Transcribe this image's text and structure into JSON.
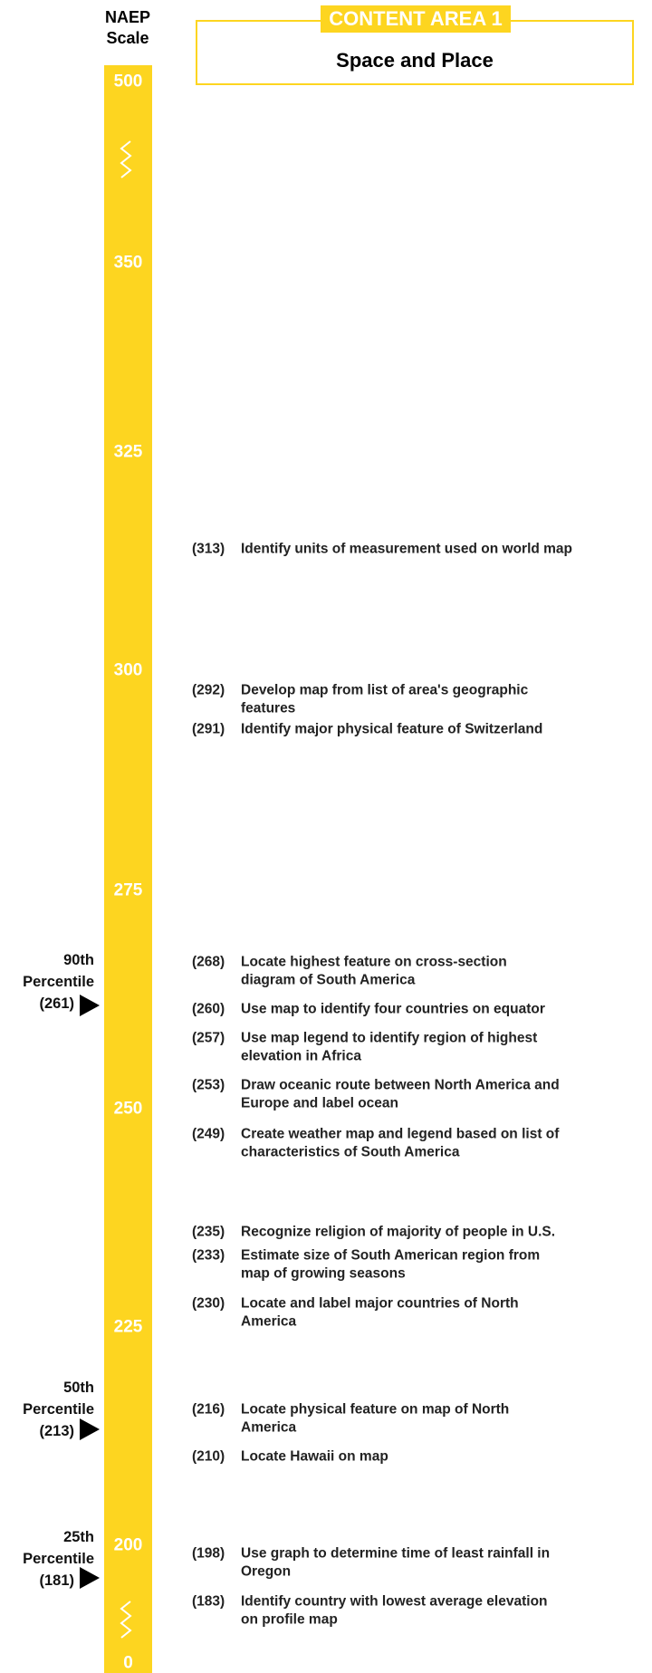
{
  "header": {
    "scale_title": [
      "NAEP",
      "Scale"
    ],
    "badge": "CONTENT AREA 1",
    "title": "Space and Place"
  },
  "scale": [
    "500",
    "350",
    "325",
    "300",
    "275",
    "250",
    "225",
    "200",
    "0"
  ],
  "percentiles": [
    {
      "rank": "90th",
      "word": "Percentile",
      "score": "(261)"
    },
    {
      "rank": "50th",
      "word": "Percentile",
      "score": "(213)"
    },
    {
      "rank": "25th",
      "word": "Percentile",
      "score": "(181)"
    }
  ],
  "items": [
    {
      "score": "(313)",
      "text": [
        "Identify units of measurement used on world map"
      ]
    },
    {
      "score": "(292)",
      "text": [
        "Develop map from list of area's geographic",
        "features"
      ]
    },
    {
      "score": "(291)",
      "text": [
        "Identify major physical feature of Switzerland"
      ]
    },
    {
      "score": "(268)",
      "text": [
        "Locate highest feature on cross-section",
        "diagram of South America"
      ]
    },
    {
      "score": "(260)",
      "text": [
        "Use map to identify four countries on equator"
      ]
    },
    {
      "score": "(257)",
      "text": [
        "Use map legend to identify region of highest",
        "elevation in Africa"
      ]
    },
    {
      "score": "(253)",
      "text": [
        "Draw oceanic route between North America and",
        "Europe and label ocean"
      ]
    },
    {
      "score": "(249)",
      "text": [
        "Create weather map and legend based on list of",
        "characteristics of South America"
      ]
    },
    {
      "score": "(235)",
      "text": [
        "Recognize religion of majority of people in U.S."
      ]
    },
    {
      "score": "(233)",
      "text": [
        "Estimate size of South American region from",
        "map of growing seasons"
      ]
    },
    {
      "score": "(230)",
      "text": [
        "Locate and label major countries of North",
        "America"
      ]
    },
    {
      "score": "(216)",
      "text": [
        "Locate physical feature on map of North",
        "America"
      ]
    },
    {
      "score": "(210)",
      "text": [
        "Locate Hawaii on map"
      ]
    },
    {
      "score": "(198)",
      "text": [
        "Use graph to determine time of least rainfall in",
        "Oregon"
      ]
    },
    {
      "score": "(183)",
      "text": [
        "Identify country with lowest average elevation",
        "on profile map"
      ]
    }
  ]
}
